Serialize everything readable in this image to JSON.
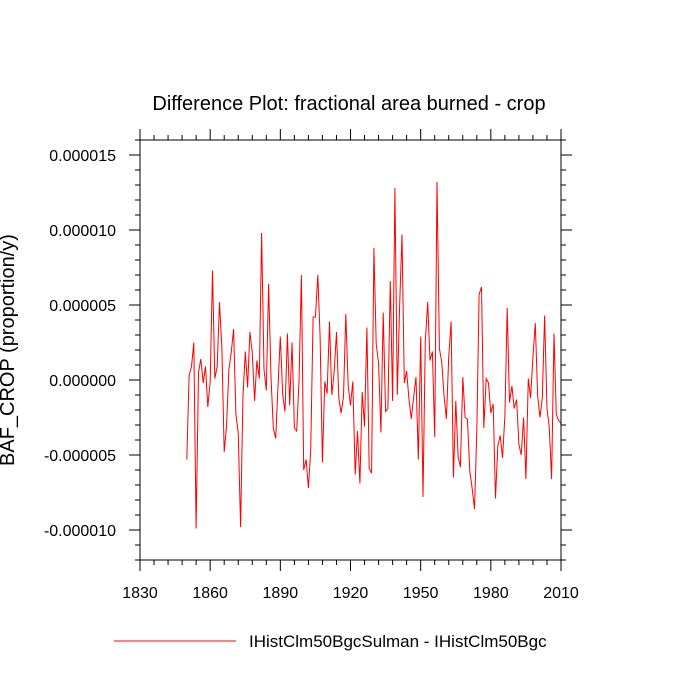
{
  "chart_data": {
    "type": "line",
    "title": "Difference Plot: fractional area burned - crop",
    "ylabel": "BAF_CROP  (proportion/y)",
    "xlabel": "",
    "xlim": [
      1830,
      2010
    ],
    "ylim": [
      -1.2e-05,
      1.6e-05
    ],
    "xticks": [
      1830,
      1860,
      1890,
      1920,
      1950,
      1980,
      2010
    ],
    "xtick_labels": [
      "1830",
      "1860",
      "1890",
      "1920",
      "1950",
      "1980",
      "2010"
    ],
    "yticks": [
      -1e-05,
      -5e-06,
      0,
      5e-06,
      1e-05,
      1.5e-05
    ],
    "ytick_labels": [
      "-0.000010",
      "-0.000005",
      "0.000000",
      "0.000005",
      "0.000010",
      "0.000015"
    ],
    "grid": false,
    "legend": "bottom",
    "series": [
      {
        "name": "IHistClm50BgcSulman - IHistClm50Bgc",
        "color": "#ff0000",
        "x": [
          1850,
          1851,
          1852,
          1853,
          1854,
          1855,
          1856,
          1857,
          1858,
          1859,
          1860,
          1861,
          1862,
          1863,
          1864,
          1865,
          1866,
          1867,
          1868,
          1869,
          1870,
          1871,
          1872,
          1873,
          1874,
          1875,
          1876,
          1877,
          1878,
          1879,
          1880,
          1881,
          1882,
          1883,
          1884,
          1885,
          1886,
          1887,
          1888,
          1889,
          1890,
          1891,
          1892,
          1893,
          1894,
          1895,
          1896,
          1897,
          1898,
          1899,
          1900,
          1901,
          1902,
          1903,
          1904,
          1905,
          1906,
          1907,
          1908,
          1909,
          1910,
          1911,
          1912,
          1913,
          1914,
          1915,
          1916,
          1917,
          1918,
          1919,
          1920,
          1921,
          1922,
          1923,
          1924,
          1925,
          1926,
          1927,
          1928,
          1929,
          1930,
          1931,
          1932,
          1933,
          1934,
          1935,
          1936,
          1937,
          1938,
          1939,
          1940,
          1941,
          1942,
          1943,
          1944,
          1945,
          1946,
          1947,
          1948,
          1949,
          1950,
          1951,
          1952,
          1953,
          1954,
          1955,
          1956,
          1957,
          1958,
          1959,
          1960,
          1961,
          1962,
          1963,
          1964,
          1965,
          1966,
          1967,
          1968,
          1969,
          1970,
          1971,
          1972,
          1973,
          1974,
          1975,
          1976,
          1977,
          1978,
          1979,
          1980,
          1981,
          1982,
          1983,
          1984,
          1985,
          1986,
          1987,
          1988,
          1989,
          1990,
          1991,
          1992,
          1993,
          1994,
          1995,
          1996,
          1997,
          1998,
          1999,
          2000,
          2001,
          2002,
          2003,
          2004,
          2005,
          2006,
          2007,
          2008,
          2009,
          2010
        ],
        "y": [
          -5.3e-06,
          3e-07,
          9e-07,
          2.5e-06,
          -9.9e-06,
          5e-07,
          1.4e-06,
          -2e-07,
          9e-07,
          -1.8e-06,
          -1e-07,
          7.3e-06,
          1e-07,
          9e-07,
          5.2e-06,
          2.1e-06,
          -4.8e-06,
          -3.1e-06,
          7e-07,
          1.8e-06,
          3.4e-06,
          -2.3e-06,
          -3.5e-06,
          -9.8e-06,
          -1.2e-06,
          1.9e-06,
          -5e-07,
          3.2e-06,
          1.8e-06,
          -1.4e-06,
          1.3e-06,
          1e-07,
          9.8e-06,
          7e-07,
          -7e-07,
          6.4e-06,
          2e-07,
          -3.2e-06,
          -3.9e-06,
          -4e-07,
          2.9e-06,
          -1e-06,
          -2.1e-06,
          3.1e-06,
          -1.7e-06,
          2.5e-06,
          -3.2e-06,
          -3.4e-06,
          -1e-07,
          7e-06,
          -6e-06,
          -5.3e-06,
          -7.2e-06,
          -4.7e-06,
          4.2e-06,
          4.2e-06,
          7e-06,
          2.9e-06,
          -5.5e-06,
          -1e-07,
          -9e-07,
          3.9e-06,
          -1e-06,
          5e-07,
          3.2e-06,
          -1.2e-06,
          -2.2e-06,
          -1.1e-06,
          4.4e-06,
          -4e-07,
          -1.7e-06,
          -1e-07,
          -6.3e-06,
          -3.4e-06,
          -6.9e-06,
          -8e-07,
          -3.1e-06,
          3.5e-06,
          -5.9e-06,
          -6.2e-06,
          8.8e-06,
          2.4e-06,
          1.1e-06,
          -3.5e-06,
          4.5e-06,
          -2.1e-06,
          -1.9e-06,
          6.6e-06,
          -1.4e-06,
          1.28e-05,
          -1e-06,
          4.9e-06,
          9.7e-06,
          -2e-07,
          6e-07,
          -1.3e-06,
          -2.6e-06,
          -1.1e-06,
          2e-07,
          -5.3e-06,
          2.9e-06,
          -7.8e-06,
          2.6e-06,
          5.2e-06,
          1.3e-06,
          1.9e-06,
          -3.8e-06,
          1.32e-05,
          2.1e-06,
          1.2e-06,
          -1.1e-06,
          -2.6e-06,
          1.5e-06,
          3.9e-06,
          -6.5e-06,
          -1.4e-06,
          -5.1e-06,
          -5.8e-06,
          2e-07,
          -2.5e-06,
          -2.6e-06,
          -6.1e-06,
          -7.2e-06,
          -8.6e-06,
          -3.4e-06,
          5.7e-06,
          6.2e-06,
          -3.2e-06,
          1e-07,
          -2e-07,
          -2.2e-06,
          -1.6e-06,
          -7.9e-06,
          -4.4e-06,
          -3.7e-06,
          -5.2e-06,
          -2.4e-06,
          4.8e-06,
          -1.5e-06,
          -4e-07,
          -1.9e-06,
          -1.3e-06,
          -4.3e-06,
          -5e-06,
          -2.5e-06,
          -6.6e-06,
          1e-07,
          -1.2e-06,
          1.5e-06,
          3.8e-06,
          -1e-06,
          -2.5e-06,
          -1.2e-06,
          4.3e-06,
          -1.9e-06,
          -3.2e-06,
          -6.6e-06,
          3.1e-06,
          -2.3e-06,
          -2.7e-06,
          -2.9e-06
        ]
      }
    ]
  }
}
